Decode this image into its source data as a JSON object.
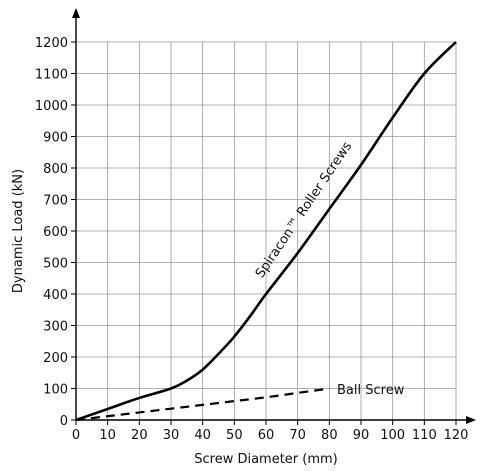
{
  "chart_data": {
    "type": "line",
    "xlabel": "Screw Diameter (mm)",
    "ylabel": "Dynamic Load (kN)",
    "xlim": [
      0,
      120
    ],
    "ylim": [
      0,
      1200
    ],
    "xticks": [
      0,
      10,
      20,
      30,
      40,
      50,
      60,
      70,
      80,
      90,
      100,
      110,
      120
    ],
    "yticks": [
      0,
      100,
      200,
      300,
      400,
      500,
      600,
      700,
      800,
      900,
      1000,
      1100,
      1200
    ],
    "grid": true,
    "series": [
      {
        "name": "Spiracon™ Roller Screws",
        "style": "solid",
        "color": "#000000",
        "x": [
          0,
          10,
          20,
          30,
          35,
          40,
          45,
          50,
          55,
          60,
          70,
          80,
          90,
          100,
          110,
          120
        ],
        "y": [
          0,
          35,
          70,
          100,
          125,
          160,
          210,
          265,
          330,
          400,
          530,
          670,
          810,
          960,
          1100,
          1200
        ]
      },
      {
        "name": "Ball Screw",
        "style": "dashed",
        "color": "#000000",
        "x": [
          0,
          10,
          20,
          30,
          40,
          50,
          60,
          70,
          80
        ],
        "y": [
          0,
          12,
          24,
          36,
          48,
          60,
          72,
          86,
          100
        ]
      }
    ],
    "annotations": [
      {
        "text": "Spiracon™ Roller Screws",
        "series": 0
      },
      {
        "text": "Ball Screw",
        "series": 1
      }
    ]
  }
}
